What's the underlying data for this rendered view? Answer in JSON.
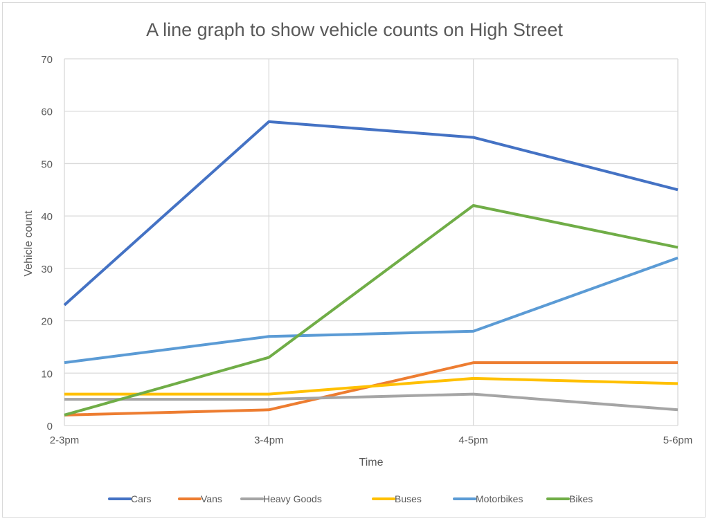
{
  "chart_data": {
    "type": "line",
    "title": "A line graph to show vehicle counts on High Street",
    "xlabel": "Time",
    "ylabel": "Vehicle count",
    "categories": [
      "2-3pm",
      "3-4pm",
      "4-5pm",
      "5-6pm"
    ],
    "ylim": [
      0,
      70
    ],
    "yticks": [
      0,
      10,
      20,
      30,
      40,
      50,
      60,
      70
    ],
    "grid": true,
    "legend": "bottom",
    "series": [
      {
        "name": "Cars",
        "color": "#4472C4",
        "values": [
          23,
          58,
          55,
          45
        ]
      },
      {
        "name": "Vans",
        "color": "#ED7D31",
        "values": [
          2,
          3,
          12,
          12
        ]
      },
      {
        "name": "Heavy Goods",
        "color": "#A5A5A5",
        "values": [
          5,
          5,
          6,
          3
        ]
      },
      {
        "name": "Buses",
        "color": "#FFC000",
        "values": [
          6,
          6,
          9,
          8
        ]
      },
      {
        "name": "Motorbikes",
        "color": "#5B9BD5",
        "values": [
          12,
          17,
          18,
          32
        ]
      },
      {
        "name": "Bikes",
        "color": "#70AD47",
        "values": [
          2,
          13,
          42,
          34
        ]
      }
    ]
  }
}
